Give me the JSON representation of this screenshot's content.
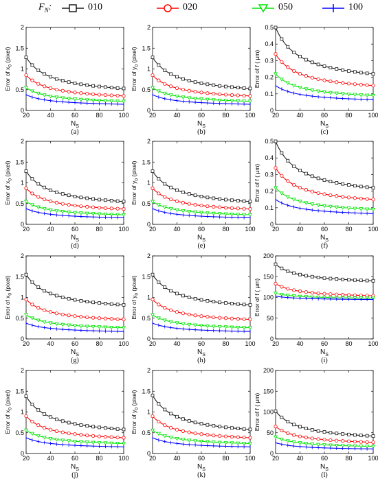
{
  "legend": {
    "title": "F",
    "title_sub": "N",
    "title_colon": ":",
    "items": [
      {
        "label": "010",
        "color": "#1a1a1a",
        "marker": "square"
      },
      {
        "label": "020",
        "color": "#ff0000",
        "marker": "circle"
      },
      {
        "label": "050",
        "color": "#00e600",
        "marker": "triangle-down"
      },
      {
        "label": "100",
        "color": "#0000ff",
        "marker": "plus"
      }
    ]
  },
  "chart_data": [
    {
      "id": "a",
      "type": "line",
      "caption": "(a)",
      "xlabel": "N",
      "xlabel_sub": "S",
      "ylabel_pre": "Error of x",
      "ylabel_sub": "0",
      "ylabel_post": " (pixel)",
      "xlim": [
        20,
        100
      ],
      "ylim": [
        0,
        2
      ],
      "xticks": [
        20,
        40,
        60,
        80,
        100
      ],
      "yticks": [
        0,
        0.5,
        1,
        1.5,
        2
      ],
      "ytick_labels": [
        "0",
        "0.5",
        "1",
        "1.5",
        "2"
      ],
      "series": [
        {
          "name": "010",
          "start": 1.28,
          "end": 0.53
        },
        {
          "name": "020",
          "start": 0.85,
          "end": 0.35
        },
        {
          "name": "050",
          "start": 0.55,
          "end": 0.22
        },
        {
          "name": "100",
          "start": 0.38,
          "end": 0.15
        }
      ]
    },
    {
      "id": "b",
      "type": "line",
      "caption": "(b)",
      "xlabel": "N",
      "xlabel_sub": "S",
      "ylabel_pre": "Error of y",
      "ylabel_sub": "0",
      "ylabel_post": " (pixel)",
      "xlim": [
        20,
        100
      ],
      "ylim": [
        0,
        2
      ],
      "xticks": [
        20,
        40,
        60,
        80,
        100
      ],
      "yticks": [
        0,
        0.5,
        1,
        1.5,
        2
      ],
      "ytick_labels": [
        "0",
        "0.5",
        "1",
        "1.5",
        "2"
      ],
      "series": [
        {
          "name": "010",
          "start": 1.28,
          "end": 0.53
        },
        {
          "name": "020",
          "start": 0.85,
          "end": 0.35
        },
        {
          "name": "050",
          "start": 0.55,
          "end": 0.22
        },
        {
          "name": "100",
          "start": 0.38,
          "end": 0.15
        }
      ]
    },
    {
      "id": "c",
      "type": "line",
      "caption": "(c)",
      "xlabel": "N",
      "xlabel_sub": "S",
      "ylabel_pre": "Error of f ( ",
      "ylabel_sub": "",
      "ylabel_post": "μm)",
      "xlim": [
        20,
        100
      ],
      "ylim": [
        0,
        0.5
      ],
      "xticks": [
        20,
        40,
        60,
        80,
        100
      ],
      "yticks": [
        0,
        0.1,
        0.2,
        0.3,
        0.4,
        0.5
      ],
      "ytick_labels": [
        "0",
        "0.1",
        "0.2",
        "0.3",
        "0.4",
        "0.5"
      ],
      "series": [
        {
          "name": "010",
          "start": 0.5,
          "end": 0.22
        },
        {
          "name": "020",
          "start": 0.34,
          "end": 0.15
        },
        {
          "name": "050",
          "start": 0.22,
          "end": 0.09
        },
        {
          "name": "100",
          "start": 0.15,
          "end": 0.065
        }
      ]
    },
    {
      "id": "d",
      "type": "line",
      "caption": "(d)",
      "xlabel": "N",
      "xlabel_sub": "S",
      "ylabel_pre": "Error of x",
      "ylabel_sub": "0",
      "ylabel_post": " (pixel)",
      "xlim": [
        20,
        100
      ],
      "ylim": [
        0,
        2
      ],
      "xticks": [
        20,
        40,
        60,
        80,
        100
      ],
      "yticks": [
        0,
        0.5,
        1,
        1.5,
        2
      ],
      "ytick_labels": [
        "0",
        "0.5",
        "1",
        "1.5",
        "2"
      ],
      "series": [
        {
          "name": "010",
          "start": 1.28,
          "end": 0.55
        },
        {
          "name": "020",
          "start": 0.87,
          "end": 0.37
        },
        {
          "name": "050",
          "start": 0.55,
          "end": 0.23
        },
        {
          "name": "100",
          "start": 0.38,
          "end": 0.16
        }
      ]
    },
    {
      "id": "e",
      "type": "line",
      "caption": "(e)",
      "xlabel": "N",
      "xlabel_sub": "S",
      "ylabel_pre": "Error of y",
      "ylabel_sub": "0",
      "ylabel_post": " (pixel)",
      "xlim": [
        20,
        100
      ],
      "ylim": [
        0,
        2
      ],
      "xticks": [
        20,
        40,
        60,
        80,
        100
      ],
      "yticks": [
        0,
        0.5,
        1,
        1.5,
        2
      ],
      "ytick_labels": [
        "0",
        "0.5",
        "1",
        "1.5",
        "2"
      ],
      "series": [
        {
          "name": "010",
          "start": 1.28,
          "end": 0.55
        },
        {
          "name": "020",
          "start": 0.87,
          "end": 0.37
        },
        {
          "name": "050",
          "start": 0.55,
          "end": 0.23
        },
        {
          "name": "100",
          "start": 0.38,
          "end": 0.16
        }
      ]
    },
    {
      "id": "f",
      "type": "line",
      "caption": "(f)",
      "xlabel": "N",
      "xlabel_sub": "S",
      "ylabel_pre": "Error of f ( ",
      "ylabel_sub": "",
      "ylabel_post": "μm)",
      "xlim": [
        20,
        100
      ],
      "ylim": [
        0,
        0.5
      ],
      "xticks": [
        20,
        40,
        60,
        80,
        100
      ],
      "yticks": [
        0,
        0.1,
        0.2,
        0.3,
        0.4,
        0.5
      ],
      "ytick_labels": [
        "0",
        "0.1",
        "0.2",
        "0.3",
        "0.4",
        "0.5"
      ],
      "series": [
        {
          "name": "010",
          "start": 0.5,
          "end": 0.22
        },
        {
          "name": "020",
          "start": 0.34,
          "end": 0.15
        },
        {
          "name": "050",
          "start": 0.22,
          "end": 0.09
        },
        {
          "name": "100",
          "start": 0.15,
          "end": 0.065
        }
      ]
    },
    {
      "id": "g",
      "type": "line",
      "caption": "(g)",
      "xlabel": "N",
      "xlabel_sub": "S",
      "ylabel_pre": "Error of x",
      "ylabel_sub": "0",
      "ylabel_post": " (pixel)",
      "xlim": [
        20,
        100
      ],
      "ylim": [
        0,
        2
      ],
      "xticks": [
        20,
        40,
        60,
        80,
        100
      ],
      "yticks": [
        0,
        0.5,
        1,
        1.5,
        2
      ],
      "ytick_labels": [
        "0",
        "0.5",
        "1",
        "1.5",
        "2"
      ],
      "series": [
        {
          "name": "010",
          "start": 1.55,
          "end": 0.82
        },
        {
          "name": "020",
          "start": 0.95,
          "end": 0.47
        },
        {
          "name": "050",
          "start": 0.58,
          "end": 0.27
        },
        {
          "name": "100",
          "start": 0.38,
          "end": 0.18
        }
      ]
    },
    {
      "id": "h",
      "type": "line",
      "caption": "(h)",
      "xlabel": "N",
      "xlabel_sub": "S",
      "ylabel_pre": "Error of y",
      "ylabel_sub": "0",
      "ylabel_post": " (pixel)",
      "xlim": [
        20,
        100
      ],
      "ylim": [
        0,
        2
      ],
      "xticks": [
        20,
        40,
        60,
        80,
        100
      ],
      "yticks": [
        0,
        0.5,
        1,
        1.5,
        2
      ],
      "ytick_labels": [
        "0",
        "0.5",
        "1",
        "1.5",
        "2"
      ],
      "series": [
        {
          "name": "010",
          "start": 1.55,
          "end": 0.82
        },
        {
          "name": "020",
          "start": 0.95,
          "end": 0.47
        },
        {
          "name": "050",
          "start": 0.58,
          "end": 0.27
        },
        {
          "name": "100",
          "start": 0.38,
          "end": 0.18
        }
      ]
    },
    {
      "id": "i",
      "type": "line",
      "caption": "(i)",
      "xlabel": "N",
      "xlabel_sub": "S",
      "ylabel_pre": "Error of f ( ",
      "ylabel_sub": "",
      "ylabel_post": "μm)",
      "xlim": [
        20,
        100
      ],
      "ylim": [
        0,
        200
      ],
      "xticks": [
        20,
        40,
        60,
        80,
        100
      ],
      "yticks": [
        0,
        50,
        100,
        150,
        200
      ],
      "ytick_labels": [
        "0",
        "50",
        "100",
        "150",
        "200"
      ],
      "series": [
        {
          "name": "010",
          "start": 180,
          "end": 140
        },
        {
          "name": "020",
          "start": 133,
          "end": 104
        },
        {
          "name": "050",
          "start": 110,
          "end": 98
        },
        {
          "name": "100",
          "start": 103,
          "end": 95
        }
      ]
    },
    {
      "id": "j",
      "type": "line",
      "caption": "(j)",
      "xlabel": "N",
      "xlabel_sub": "S",
      "ylabel_pre": "Error of x",
      "ylabel_sub": "0",
      "ylabel_post": " (pixel)",
      "xlim": [
        20,
        100
      ],
      "ylim": [
        0,
        2
      ],
      "xticks": [
        20,
        40,
        60,
        80,
        100
      ],
      "yticks": [
        0,
        0.5,
        1,
        1.5,
        2
      ],
      "ytick_labels": [
        "0",
        "0.5",
        "1",
        "1.5",
        "2"
      ],
      "series": [
        {
          "name": "010",
          "start": 1.38,
          "end": 0.58
        },
        {
          "name": "020",
          "start": 0.9,
          "end": 0.38
        },
        {
          "name": "050",
          "start": 0.56,
          "end": 0.24
        },
        {
          "name": "100",
          "start": 0.38,
          "end": 0.16
        }
      ]
    },
    {
      "id": "k",
      "type": "line",
      "caption": "(k)",
      "xlabel": "N",
      "xlabel_sub": "S",
      "ylabel_pre": "Error of y",
      "ylabel_sub": "0",
      "ylabel_post": " (pixel)",
      "xlim": [
        20,
        100
      ],
      "ylim": [
        0,
        2
      ],
      "xticks": [
        20,
        40,
        60,
        80,
        100
      ],
      "yticks": [
        0,
        0.5,
        1,
        1.5,
        2
      ],
      "ytick_labels": [
        "0",
        "0.5",
        "1",
        "1.5",
        "2"
      ],
      "series": [
        {
          "name": "010",
          "start": 1.4,
          "end": 0.58
        },
        {
          "name": "020",
          "start": 0.9,
          "end": 0.38
        },
        {
          "name": "050",
          "start": 0.56,
          "end": 0.24
        },
        {
          "name": "100",
          "start": 0.38,
          "end": 0.16
        }
      ]
    },
    {
      "id": "l",
      "type": "line",
      "caption": "(l)",
      "xlabel": "N",
      "xlabel_sub": "S",
      "ylabel_pre": "Error of f ( ",
      "ylabel_sub": "",
      "ylabel_post": "μm)",
      "xlim": [
        20,
        100
      ],
      "ylim": [
        0,
        200
      ],
      "xticks": [
        20,
        40,
        60,
        80,
        100
      ],
      "yticks": [
        0,
        50,
        100,
        150,
        200
      ],
      "ytick_labels": [
        "0",
        "50",
        "100",
        "150",
        "200"
      ],
      "series": [
        {
          "name": "010",
          "start": 102,
          "end": 42
        },
        {
          "name": "020",
          "start": 65,
          "end": 27
        },
        {
          "name": "050",
          "start": 40,
          "end": 17
        },
        {
          "name": "100",
          "start": 26,
          "end": 11
        }
      ]
    }
  ]
}
